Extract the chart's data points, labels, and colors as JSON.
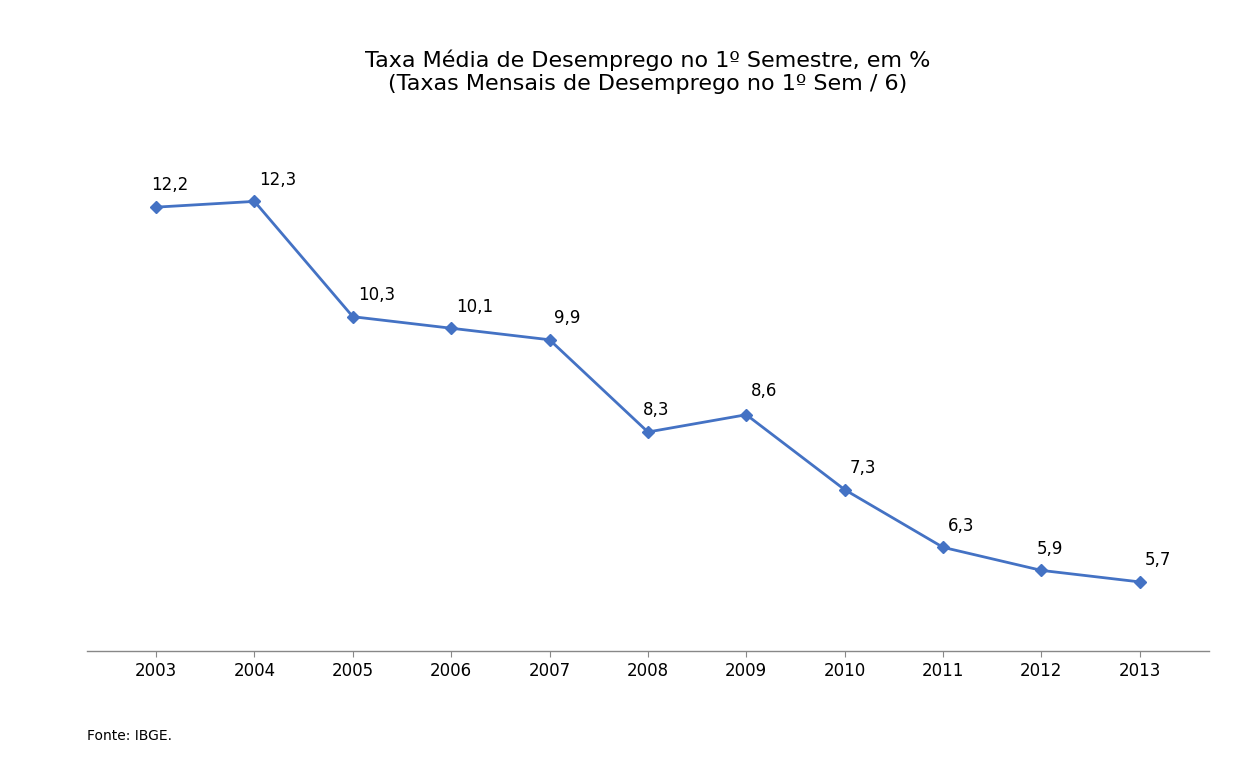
{
  "years": [
    2003,
    2004,
    2005,
    2006,
    2007,
    2008,
    2009,
    2010,
    2011,
    2012,
    2013
  ],
  "values": [
    12.2,
    12.3,
    10.3,
    10.1,
    9.9,
    8.3,
    8.6,
    7.3,
    6.3,
    5.9,
    5.7
  ],
  "labels": [
    "12,2",
    "12,3",
    "10,3",
    "10,1",
    "9,9",
    "8,3",
    "8,6",
    "7,3",
    "6,3",
    "5,9",
    "5,7"
  ],
  "title_line1": "Taxa Média de Desemprego no 1º Semestre, em %",
  "title_line2": "(Taxas Mensais de Desemprego no 1º Sem / 6)",
  "source_text": "Fonte: IBGE.",
  "line_color": "#4472C4",
  "marker_color": "#4472C4",
  "background_color": "#ffffff",
  "title_fontsize": 16,
  "label_fontsize": 12,
  "tick_fontsize": 12,
  "source_fontsize": 10,
  "ylim_min": 4.5,
  "ylim_max": 13.8,
  "xlim_min": 2002.3,
  "xlim_max": 2013.7,
  "label_offsets": {
    "2003": [
      -0.05,
      0.22,
      "left"
    ],
    "2004": [
      0.05,
      0.22,
      "left"
    ],
    "2005": [
      0.05,
      0.22,
      "left"
    ],
    "2006": [
      0.05,
      0.22,
      "left"
    ],
    "2007": [
      0.05,
      0.22,
      "left"
    ],
    "2008": [
      -0.05,
      0.22,
      "left"
    ],
    "2009": [
      0.05,
      0.25,
      "left"
    ],
    "2010": [
      0.05,
      0.22,
      "left"
    ],
    "2011": [
      0.05,
      0.22,
      "left"
    ],
    "2012": [
      -0.05,
      0.22,
      "left"
    ],
    "2013": [
      0.05,
      0.22,
      "left"
    ]
  }
}
